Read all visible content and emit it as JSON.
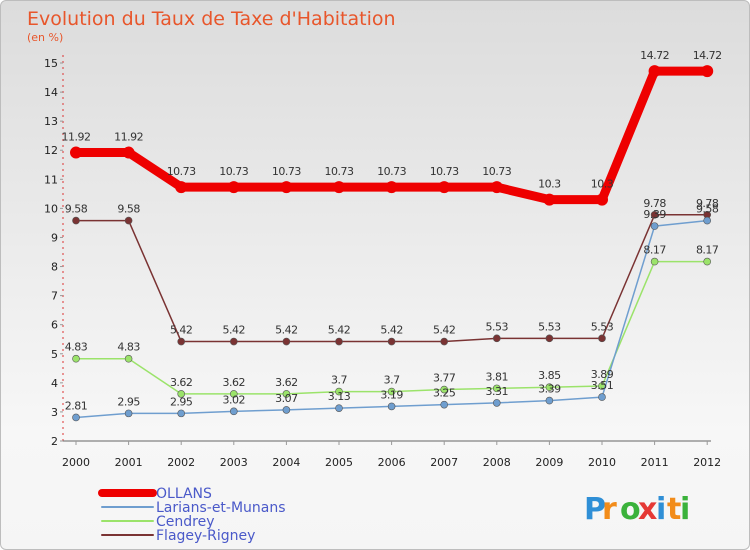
{
  "chart_data": {
    "type": "line",
    "title": "Evolution du Taux de Taxe d'Habitation",
    "subtitle": "(en %)",
    "x": [
      "2000",
      "2001",
      "2002",
      "2003",
      "2004",
      "2005",
      "2006",
      "2007",
      "2008",
      "2009",
      "2010",
      "2011",
      "2012"
    ],
    "ylim": [
      2,
      15
    ],
    "yticks": [
      2,
      3,
      4,
      5,
      6,
      7,
      8,
      9,
      10,
      11,
      12,
      13,
      14,
      15
    ],
    "grid": false,
    "legend_position": "bottom-left",
    "series": [
      {
        "name": "OLLANS",
        "color": "#ee0000",
        "width": 9,
        "marker": 6,
        "values": [
          11.92,
          11.92,
          10.73,
          10.73,
          10.73,
          10.73,
          10.73,
          10.73,
          10.73,
          10.3,
          10.3,
          14.72,
          14.72
        ],
        "labels": [
          "11.92",
          "11.92",
          "10.73",
          "10.73",
          "10.73",
          "10.73",
          "10.73",
          "10.73",
          "10.73",
          "10.3",
          "10.3",
          "14.72",
          "14.72"
        ]
      },
      {
        "name": "Larians-et-Munans",
        "color": "#6f9ecf",
        "width": 1.5,
        "marker": 3.5,
        "values": [
          2.81,
          2.95,
          2.95,
          3.02,
          3.07,
          3.13,
          3.19,
          3.25,
          3.31,
          3.39,
          3.51,
          9.39,
          9.58
        ],
        "labels": [
          "2.81",
          "2.95",
          "2.95",
          "3.02",
          "3.07",
          "3.13",
          "3.19",
          "3.25",
          "3.31",
          "3.39",
          "3.51",
          "9.39",
          "9.58"
        ]
      },
      {
        "name": "Cendrey",
        "color": "#9be36a",
        "width": 1.5,
        "marker": 3.5,
        "values": [
          4.83,
          4.83,
          3.62,
          3.62,
          3.62,
          3.7,
          3.7,
          3.77,
          3.81,
          3.85,
          3.89,
          8.17,
          8.17
        ],
        "labels": [
          "4.83",
          "4.83",
          "3.62",
          "3.62",
          "3.62",
          "3.7",
          "3.7",
          "3.77",
          "3.81",
          "3.85",
          "3.89",
          "8.17",
          "8.17"
        ]
      },
      {
        "name": "Flagey-Rigney",
        "color": "#7a3333",
        "width": 1.5,
        "marker": 3.5,
        "values": [
          9.58,
          9.58,
          5.42,
          5.42,
          5.42,
          5.42,
          5.42,
          5.42,
          5.53,
          5.53,
          5.53,
          9.78,
          9.78
        ],
        "labels": [
          "9.58",
          "9.58",
          "5.42",
          "5.42",
          "5.42",
          "5.42",
          "5.42",
          "5.42",
          "5.53",
          "5.53",
          "5.53",
          "9.78",
          "9.78"
        ]
      }
    ]
  },
  "brand": {
    "text": "Proxiti",
    "letters": [
      "P",
      "r",
      "o",
      "x",
      "i",
      "t",
      "i"
    ],
    "colors": [
      "#2f8fd6",
      "#f28c1a",
      "#3bb23b",
      "#e53935",
      "#2f8fd6",
      "#f28c1a",
      "#3bb23b"
    ]
  }
}
